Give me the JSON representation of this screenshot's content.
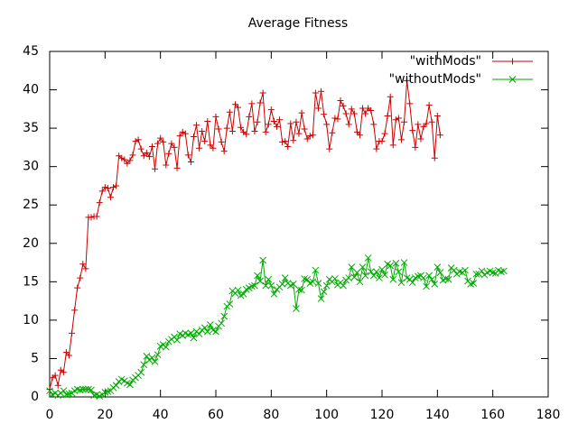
{
  "chart_data": {
    "type": "line",
    "title": "Average Fitness",
    "x": [
      0,
      1,
      2,
      3,
      4,
      5,
      6,
      7,
      8,
      9,
      10,
      11,
      12,
      13,
      14,
      15,
      16,
      17,
      18,
      19,
      20,
      21,
      22,
      23,
      24,
      25,
      26,
      27,
      28,
      29,
      30,
      31,
      32,
      33,
      34,
      35,
      36,
      37,
      38,
      39,
      40,
      41,
      42,
      43,
      44,
      45,
      46,
      47,
      48,
      49,
      50,
      51,
      52,
      53,
      54,
      55,
      56,
      57,
      58,
      59,
      60,
      61,
      62,
      63,
      64,
      65,
      66,
      67,
      68,
      69,
      70,
      71,
      72,
      73,
      74,
      75,
      76,
      77,
      78,
      79,
      80,
      81,
      82,
      83,
      84,
      85,
      86,
      87,
      88,
      89,
      90,
      91,
      92,
      93,
      94,
      95,
      96,
      97,
      98,
      99,
      100,
      101,
      102,
      103,
      104,
      105,
      106,
      107,
      108,
      109,
      110,
      111,
      112,
      113,
      114,
      115,
      116,
      117,
      118,
      119,
      120,
      121,
      122,
      123,
      124,
      125,
      126,
      127,
      128,
      129,
      130,
      131,
      132,
      133,
      134,
      135,
      136,
      137,
      138,
      139,
      140,
      141,
      142,
      143,
      144,
      145,
      146,
      147,
      148,
      149,
      150,
      151,
      152,
      153,
      154,
      155,
      156,
      157,
      158,
      159,
      160,
      161,
      162,
      163,
      164
    ],
    "series": [
      {
        "name": "\"withMods\"",
        "color": "#cc0000",
        "marker": "plus",
        "values": [
          1,
          2.5,
          2.8,
          1.5,
          3.5,
          3.2,
          5.8,
          5.4,
          8.3,
          11.3,
          14.2,
          15.5,
          17.3,
          16.7,
          23.4,
          23.4,
          23.5,
          23.5,
          25.3,
          26.8,
          27.3,
          27.2,
          26,
          27.3,
          27.5,
          31.4,
          31.1,
          30.9,
          30.4,
          30.8,
          31.5,
          33.3,
          33.5,
          32.3,
          31.4,
          31.8,
          31.3,
          32.6,
          29.7,
          33,
          33.7,
          33.2,
          30.2,
          31.7,
          33,
          32.5,
          29.8,
          34,
          34.5,
          34.3,
          31.5,
          30.6,
          33.9,
          35.4,
          32.4,
          34.6,
          33.3,
          35.9,
          32.8,
          32.4,
          36.5,
          34.9,
          33.2,
          32,
          35,
          37.1,
          34.6,
          38.1,
          37.7,
          35.1,
          34.5,
          34.2,
          36.5,
          38.2,
          34.6,
          35.8,
          38.3,
          39.6,
          34.5,
          35.5,
          37.4,
          35.9,
          35.2,
          36.1,
          33.2,
          33.3,
          32.6,
          35.6,
          33.4,
          35.8,
          34.3,
          37,
          34.9,
          33.6,
          34,
          34.1,
          39.6,
          37.6,
          39.8,
          36.8,
          35.5,
          32.3,
          34.4,
          36.3,
          36.2,
          38.6,
          37.9,
          36.9,
          35.5,
          37.5,
          36.9,
          34.5,
          34.1,
          37.6,
          36.9,
          37.6,
          37.3,
          35.5,
          32.3,
          33.3,
          33.3,
          34.3,
          36.6,
          39.1,
          32.8,
          36.1,
          36.3,
          33.5,
          35.8,
          41.2,
          38.2,
          34.7,
          32.5,
          35.5,
          33.6,
          35.2,
          35.6,
          38,
          35.8,
          31.1,
          36.6,
          34.1,
          null,
          null,
          null,
          null,
          null,
          null,
          null,
          null,
          null,
          null,
          null,
          null,
          null,
          null,
          null,
          null,
          null,
          null,
          null,
          null,
          null,
          null,
          null
        ]
      },
      {
        "name": "\"withoutMods\"",
        "color": "#00aa00",
        "marker": "cross",
        "values": [
          0.8,
          0.3,
          0.5,
          0.2,
          0.5,
          0.8,
          0.3,
          0.4,
          0.5,
          0.8,
          1,
          0.9,
          1,
          1,
          1,
          0.9,
          0.2,
          0.3,
          0.1,
          0.3,
          0.6,
          0.7,
          0.8,
          1.2,
          1.5,
          2,
          2.3,
          2.1,
          1.8,
          1.6,
          2.2,
          2.5,
          2.8,
          3.2,
          4.2,
          5.3,
          4.8,
          5.1,
          4.6,
          5.5,
          6.6,
          6.8,
          6.5,
          7.2,
          7.5,
          7.8,
          7.4,
          8.2,
          8,
          8.3,
          8.1,
          8.3,
          7.7,
          8.5,
          8.2,
          8.7,
          9,
          8.5,
          9.4,
          8.7,
          8.5,
          9.2,
          9.6,
          10.5,
          11.8,
          12.1,
          13.8,
          13.5,
          13.9,
          13.2,
          13.4,
          14,
          14.2,
          14.4,
          14.5,
          15.8,
          15.1,
          17.8,
          14.5,
          15.3,
          14.5,
          13.4,
          14,
          14.3,
          14.7,
          15.5,
          14.8,
          14.5,
          14.7,
          11.5,
          14,
          13.9,
          15.4,
          15.3,
          14.8,
          15,
          16.5,
          14.8,
          12.8,
          13.7,
          14.5,
          15.3,
          15,
          15.4,
          14.6,
          14.9,
          14.5,
          15.2,
          15.5,
          16.9,
          15.6,
          16.2,
          15,
          16.9,
          15.8,
          18.1,
          16.3,
          15.8,
          16.3,
          15.5,
          16.6,
          15.9,
          17.3,
          17.1,
          15.3,
          17.4,
          16.3,
          14.9,
          17.5,
          15.5,
          15.3,
          14.9,
          15.5,
          15.7,
          15.8,
          15.5,
          14.4,
          15.8,
          15.3,
          14.7,
          16.9,
          16.2,
          15.2,
          15.4,
          15.3,
          16.8,
          16.5,
          16,
          16.3,
          16.2,
          16.5,
          15.1,
          14.7,
          14.8,
          16,
          16,
          16.4,
          15.9,
          16.2,
          16.4,
          16.2,
          16.1,
          16.5,
          16.3,
          16.4
        ]
      }
    ],
    "xlim": [
      0,
      180
    ],
    "xticks": [
      0,
      20,
      40,
      60,
      80,
      100,
      120,
      140,
      160,
      180
    ],
    "ylim": [
      0,
      45
    ],
    "yticks": [
      0,
      5,
      10,
      15,
      20,
      25,
      30,
      35,
      40,
      45
    ],
    "legend": "top-right",
    "grid": false
  }
}
